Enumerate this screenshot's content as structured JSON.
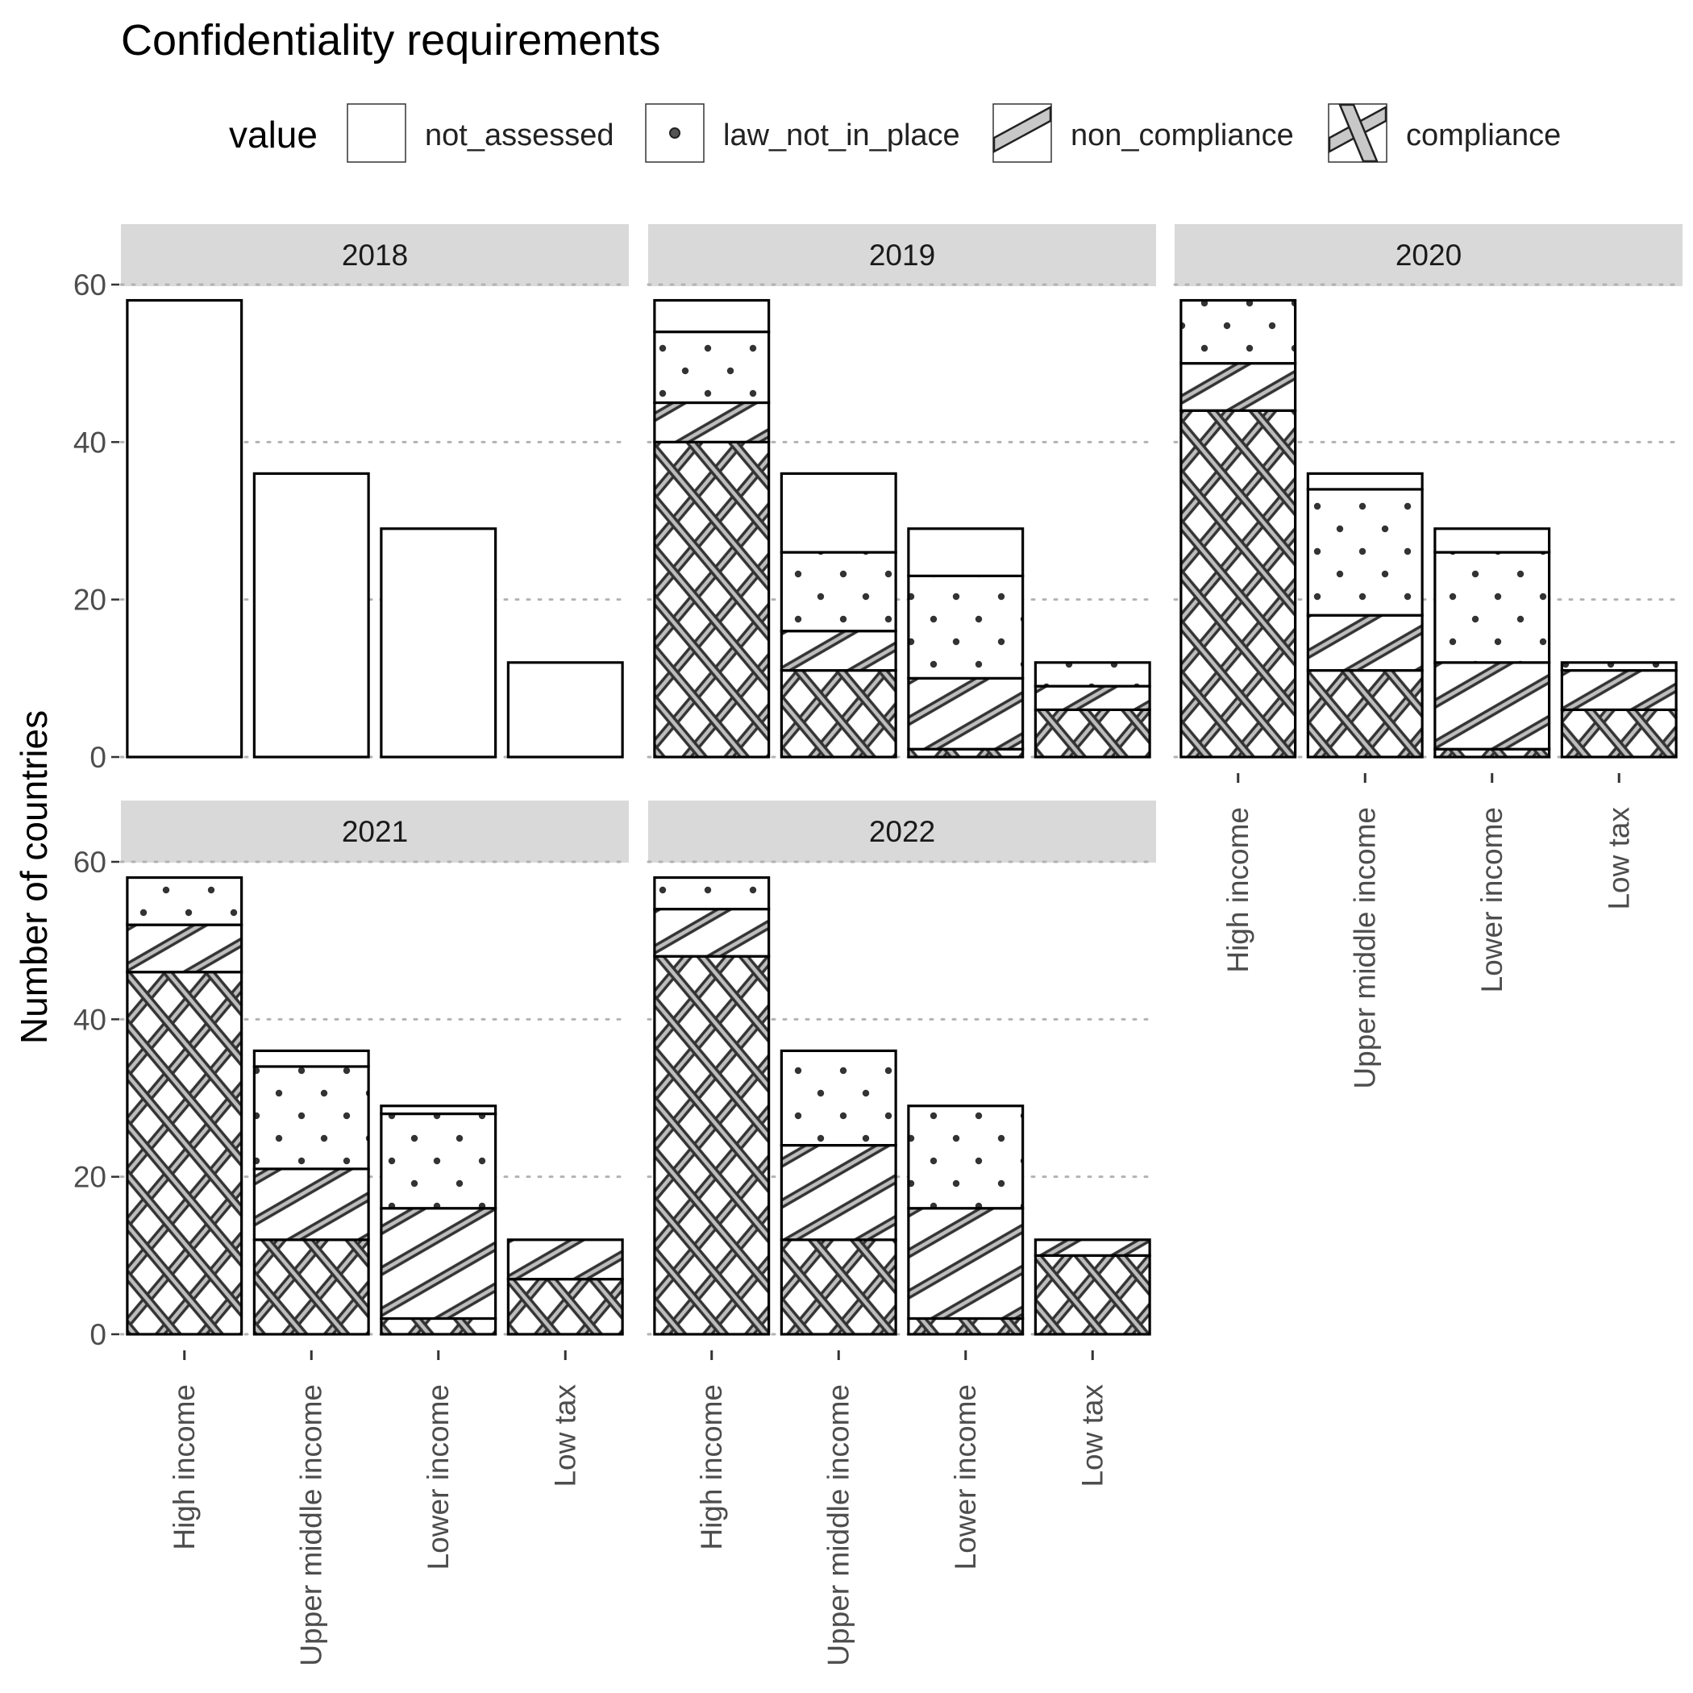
{
  "chart_data": {
    "type": "bar",
    "stacked": true,
    "title": "Confidentiality requirements",
    "ylabel": "Number of countries",
    "xlabel": "",
    "ylim": [
      0,
      60
    ],
    "yticks": [
      0,
      20,
      40,
      60
    ],
    "grid": "horizontal dotted",
    "legend": {
      "title": "value",
      "placement": "top",
      "entries": [
        "not_assessed",
        "law_not_in_place",
        "non_compliance",
        "compliance"
      ]
    },
    "categories": [
      "High income",
      "Upper middle income",
      "Lower income",
      "Low tax"
    ],
    "stack_order_bottom_to_top": [
      "compliance",
      "non_compliance",
      "law_not_in_place",
      "not_assessed"
    ],
    "panels": [
      {
        "facet": "2018",
        "series": [
          {
            "name": "compliance",
            "values": [
              0,
              0,
              0,
              0
            ]
          },
          {
            "name": "non_compliance",
            "values": [
              0,
              0,
              0,
              0
            ]
          },
          {
            "name": "law_not_in_place",
            "values": [
              0,
              0,
              0,
              0
            ]
          },
          {
            "name": "not_assessed",
            "values": [
              58,
              36,
              29,
              12
            ]
          }
        ]
      },
      {
        "facet": "2019",
        "series": [
          {
            "name": "compliance",
            "values": [
              40,
              11,
              1,
              6
            ]
          },
          {
            "name": "non_compliance",
            "values": [
              5,
              5,
              9,
              3
            ]
          },
          {
            "name": "law_not_in_place",
            "values": [
              9,
              10,
              13,
              3
            ]
          },
          {
            "name": "not_assessed",
            "values": [
              4,
              10,
              6,
              0
            ]
          }
        ]
      },
      {
        "facet": "2020",
        "series": [
          {
            "name": "compliance",
            "values": [
              44,
              11,
              1,
              6
            ]
          },
          {
            "name": "non_compliance",
            "values": [
              6,
              7,
              11,
              5
            ]
          },
          {
            "name": "law_not_in_place",
            "values": [
              8,
              16,
              14,
              1
            ]
          },
          {
            "name": "not_assessed",
            "values": [
              0,
              2,
              3,
              0
            ]
          }
        ]
      },
      {
        "facet": "2021",
        "series": [
          {
            "name": "compliance",
            "values": [
              46,
              12,
              2,
              7
            ]
          },
          {
            "name": "non_compliance",
            "values": [
              6,
              9,
              14,
              5
            ]
          },
          {
            "name": "law_not_in_place",
            "values": [
              6,
              13,
              12,
              0
            ]
          },
          {
            "name": "not_assessed",
            "values": [
              0,
              2,
              1,
              0
            ]
          }
        ]
      },
      {
        "facet": "2022",
        "series": [
          {
            "name": "compliance",
            "values": [
              48,
              12,
              2,
              10
            ]
          },
          {
            "name": "non_compliance",
            "values": [
              6,
              12,
              14,
              2
            ]
          },
          {
            "name": "law_not_in_place",
            "values": [
              4,
              12,
              13,
              0
            ]
          },
          {
            "name": "not_assessed",
            "values": [
              0,
              0,
              0,
              0
            ]
          }
        ]
      }
    ]
  }
}
